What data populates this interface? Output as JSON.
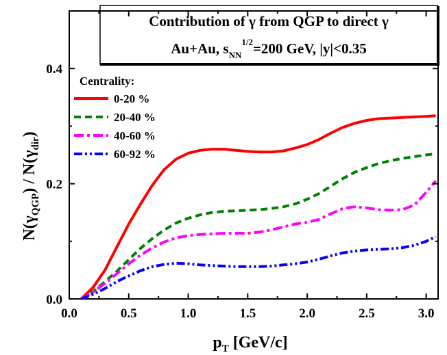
{
  "chart_data": {
    "type": "line",
    "title_line1": "Contribution of γ from QGP to direct γ",
    "title_line2": {
      "prefix": "Au+Au, s",
      "sub": "NN",
      "sup": "1/2",
      "suffix": "=200 GeV, |y|<0.35"
    },
    "xlabel": {
      "main": "p",
      "sub": "T",
      "rest": " [GeV/c]"
    },
    "ylabel": {
      "p1": "N(γ",
      "s1": "QGP",
      "p2": ") / N(γ",
      "s2": "dir",
      "p3": ")"
    },
    "xlim": [
      0.0,
      3.1
    ],
    "ylim": [
      0.0,
      0.5
    ],
    "xticks": [
      {
        "v": 0.0,
        "label": "0.0"
      },
      {
        "v": 0.5,
        "label": "0.5"
      },
      {
        "v": 1.0,
        "label": "1.0"
      },
      {
        "v": 1.5,
        "label": "1.5"
      },
      {
        "v": 2.0,
        "label": "2.0"
      },
      {
        "v": 2.5,
        "label": "2.5"
      },
      {
        "v": 3.0,
        "label": "3.0"
      }
    ],
    "yticks": [
      {
        "v": 0.0,
        "label": "0.0"
      },
      {
        "v": 0.2,
        "label": "0.2"
      },
      {
        "v": 0.4,
        "label": "0.4"
      }
    ],
    "legend_title": "Centrality:",
    "legend_position": "upper-left",
    "grid": false,
    "series": [
      {
        "name": "0-20 %",
        "color": "#ff0000",
        "dash": "solid",
        "points": [
          [
            0.1,
            0.0
          ],
          [
            0.2,
            0.02
          ],
          [
            0.3,
            0.05
          ],
          [
            0.4,
            0.09
          ],
          [
            0.5,
            0.13
          ],
          [
            0.6,
            0.165
          ],
          [
            0.7,
            0.198
          ],
          [
            0.8,
            0.225
          ],
          [
            0.9,
            0.243
          ],
          [
            1.0,
            0.253
          ],
          [
            1.1,
            0.258
          ],
          [
            1.2,
            0.26
          ],
          [
            1.3,
            0.26
          ],
          [
            1.4,
            0.258
          ],
          [
            1.5,
            0.256
          ],
          [
            1.6,
            0.255
          ],
          [
            1.7,
            0.255
          ],
          [
            1.8,
            0.257
          ],
          [
            1.9,
            0.262
          ],
          [
            2.0,
            0.268
          ],
          [
            2.1,
            0.277
          ],
          [
            2.2,
            0.288
          ],
          [
            2.3,
            0.298
          ],
          [
            2.4,
            0.305
          ],
          [
            2.5,
            0.31
          ],
          [
            2.6,
            0.313
          ],
          [
            2.7,
            0.314
          ],
          [
            2.8,
            0.315
          ],
          [
            2.9,
            0.316
          ],
          [
            3.0,
            0.317
          ],
          [
            3.08,
            0.318
          ]
        ]
      },
      {
        "name": "20-40 %",
        "color": "#008000",
        "dash": "dash",
        "points": [
          [
            0.1,
            0.0
          ],
          [
            0.2,
            0.013
          ],
          [
            0.3,
            0.03
          ],
          [
            0.4,
            0.048
          ],
          [
            0.5,
            0.068
          ],
          [
            0.6,
            0.088
          ],
          [
            0.7,
            0.105
          ],
          [
            0.8,
            0.12
          ],
          [
            0.9,
            0.132
          ],
          [
            1.0,
            0.14
          ],
          [
            1.1,
            0.146
          ],
          [
            1.2,
            0.15
          ],
          [
            1.3,
            0.152
          ],
          [
            1.4,
            0.153
          ],
          [
            1.5,
            0.154
          ],
          [
            1.6,
            0.155
          ],
          [
            1.7,
            0.157
          ],
          [
            1.8,
            0.16
          ],
          [
            1.9,
            0.165
          ],
          [
            2.0,
            0.173
          ],
          [
            2.1,
            0.183
          ],
          [
            2.2,
            0.196
          ],
          [
            2.3,
            0.209
          ],
          [
            2.4,
            0.22
          ],
          [
            2.5,
            0.228
          ],
          [
            2.6,
            0.235
          ],
          [
            2.7,
            0.24
          ],
          [
            2.8,
            0.244
          ],
          [
            2.9,
            0.247
          ],
          [
            3.0,
            0.25
          ],
          [
            3.08,
            0.252
          ]
        ]
      },
      {
        "name": "40-60 %",
        "color": "#ff00ff",
        "dash": "dashdot",
        "points": [
          [
            0.1,
            0.0
          ],
          [
            0.2,
            0.012
          ],
          [
            0.3,
            0.027
          ],
          [
            0.4,
            0.044
          ],
          [
            0.5,
            0.061
          ],
          [
            0.6,
            0.076
          ],
          [
            0.7,
            0.089
          ],
          [
            0.8,
            0.099
          ],
          [
            0.9,
            0.106
          ],
          [
            1.0,
            0.11
          ],
          [
            1.1,
            0.112
          ],
          [
            1.2,
            0.113
          ],
          [
            1.3,
            0.114
          ],
          [
            1.4,
            0.114
          ],
          [
            1.5,
            0.114
          ],
          [
            1.6,
            0.116
          ],
          [
            1.7,
            0.12
          ],
          [
            1.8,
            0.125
          ],
          [
            1.9,
            0.13
          ],
          [
            2.0,
            0.133
          ],
          [
            2.1,
            0.138
          ],
          [
            2.2,
            0.148
          ],
          [
            2.3,
            0.157
          ],
          [
            2.4,
            0.16
          ],
          [
            2.5,
            0.158
          ],
          [
            2.6,
            0.155
          ],
          [
            2.7,
            0.154
          ],
          [
            2.8,
            0.155
          ],
          [
            2.9,
            0.163
          ],
          [
            3.0,
            0.185
          ],
          [
            3.08,
            0.205
          ]
        ]
      },
      {
        "name": "60-92 %",
        "color": "#0000ff",
        "dash": "dashdotdot",
        "points": [
          [
            0.1,
            0.0
          ],
          [
            0.2,
            0.008
          ],
          [
            0.3,
            0.018
          ],
          [
            0.4,
            0.03
          ],
          [
            0.5,
            0.04
          ],
          [
            0.6,
            0.049
          ],
          [
            0.7,
            0.056
          ],
          [
            0.8,
            0.06
          ],
          [
            0.9,
            0.062
          ],
          [
            1.0,
            0.061
          ],
          [
            1.1,
            0.059
          ],
          [
            1.2,
            0.058
          ],
          [
            1.3,
            0.057
          ],
          [
            1.4,
            0.056
          ],
          [
            1.5,
            0.056
          ],
          [
            1.6,
            0.056
          ],
          [
            1.7,
            0.057
          ],
          [
            1.8,
            0.059
          ],
          [
            1.9,
            0.061
          ],
          [
            2.0,
            0.064
          ],
          [
            2.1,
            0.069
          ],
          [
            2.2,
            0.075
          ],
          [
            2.3,
            0.08
          ],
          [
            2.4,
            0.083
          ],
          [
            2.5,
            0.085
          ],
          [
            2.6,
            0.086
          ],
          [
            2.7,
            0.087
          ],
          [
            2.8,
            0.089
          ],
          [
            2.9,
            0.093
          ],
          [
            3.0,
            0.1
          ],
          [
            3.08,
            0.108
          ]
        ]
      }
    ]
  }
}
